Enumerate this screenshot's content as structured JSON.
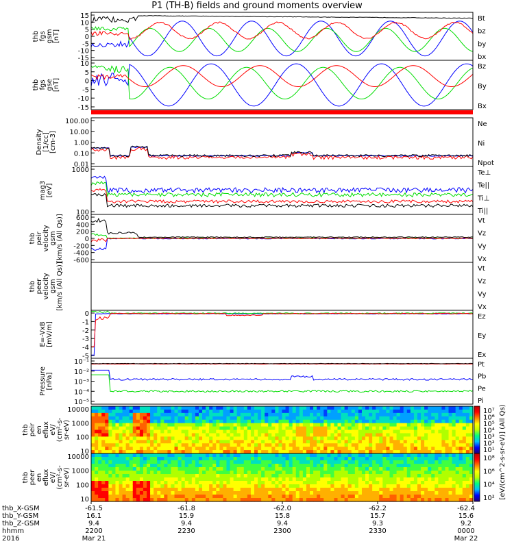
{
  "title": "P1 (TH-B) fields and ground moments overview",
  "colors": {
    "black": "#000000",
    "red": "#ff0000",
    "green": "#00dd00",
    "blue": "#0000ff"
  },
  "chart_data": [
    {
      "type": "line",
      "id": "fgs_gsm",
      "ylabel": [
        "thb",
        "fgs",
        "gsm",
        "[nT]"
      ],
      "yticks": [
        "15",
        "10",
        "5",
        "0",
        "-5",
        "-10",
        "-15"
      ],
      "ylim": [
        -17,
        16
      ],
      "series": [
        {
          "name": "Bt",
          "color": "black"
        },
        {
          "name": "bz",
          "color": "red"
        },
        {
          "name": "by",
          "color": "green"
        },
        {
          "name": "bx",
          "color": "blue"
        }
      ]
    },
    {
      "type": "line",
      "id": "fgs_gse",
      "ylabel": [
        "thb",
        "fgs",
        "gse",
        "[nT]"
      ],
      "yticks": [
        "10",
        "5",
        "0",
        "-5",
        "-10",
        "-15"
      ],
      "ylim": [
        -17,
        11
      ],
      "series": [
        {
          "name": "Bz",
          "color": "red"
        },
        {
          "name": "By",
          "color": "green"
        },
        {
          "name": "Bx",
          "color": "blue"
        }
      ]
    },
    {
      "type": "line",
      "id": "density",
      "ylabel": [
        "Density",
        "[1/cc]",
        "[cm-3]"
      ],
      "yticks": [
        "100.00",
        "10.00",
        "1.00",
        "0.10",
        "0.01"
      ],
      "ylim": [
        0.005,
        300
      ],
      "log": true,
      "series": [
        {
          "name": "Ne",
          "color": "red"
        },
        {
          "name": "Ni",
          "color": "black"
        },
        {
          "name": "Npot",
          "color": "blue"
        }
      ]
    },
    {
      "type": "line",
      "id": "temp",
      "ylabel": [
        "mag3",
        "[eV]"
      ],
      "yticks": [
        "1000",
        "100"
      ],
      "ylim": [
        30,
        3000
      ],
      "log": true,
      "series": [
        {
          "name": "Te⊥",
          "color": "red"
        },
        {
          "name": "Te||",
          "color": "black"
        },
        {
          "name": "Ti⊥",
          "color": "green"
        },
        {
          "name": "Ti||",
          "color": "green"
        }
      ]
    },
    {
      "type": "line",
      "id": "peir_vel",
      "ylabel": [
        "thb",
        "peir",
        "velocity",
        "gsm",
        "[km/s (All Qs)]"
      ],
      "yticks": [
        "600",
        "400",
        "200",
        "0",
        "-200",
        "-400",
        "-600"
      ],
      "ylim": [
        -600,
        600
      ],
      "series": [
        {
          "name": "Vt",
          "color": "black"
        },
        {
          "name": "Vz",
          "color": "red"
        },
        {
          "name": "Vy",
          "color": "green"
        },
        {
          "name": "Vx",
          "color": "blue"
        }
      ]
    },
    {
      "type": "line",
      "id": "peer_vel",
      "ylabel": [
        "thb",
        "peer",
        "velocity",
        "gsm",
        "[km/s (All Qs)]"
      ],
      "yticks": [],
      "ylim": [
        -1,
        1
      ],
      "series": [
        {
          "name": "Vt",
          "color": "black"
        },
        {
          "name": "Vz",
          "color": "red"
        },
        {
          "name": "Vy",
          "color": "green"
        },
        {
          "name": "Vx",
          "color": "blue"
        }
      ]
    },
    {
      "type": "line",
      "id": "efield",
      "ylabel": [
        "E=-VxB",
        "[mV/m]"
      ],
      "yticks": [
        "0",
        "-1",
        "-2",
        "-3",
        "-4",
        "-5"
      ],
      "ylim": [
        -5.4,
        0.4
      ],
      "series": [
        {
          "name": "Ez",
          "color": "red"
        },
        {
          "name": "Ey",
          "color": "green"
        },
        {
          "name": "Ex",
          "color": "blue"
        }
      ]
    },
    {
      "type": "line",
      "id": "pressure",
      "ylabel": [
        "Pressure",
        "[nPa]"
      ],
      "yticks": [
        "10⁻¹",
        "10⁻²",
        "10⁻³",
        "10⁻⁴",
        "10⁻⁵"
      ],
      "ylim": [
        -5.5,
        -0.5
      ],
      "log": true,
      "series": [
        {
          "name": "Pt",
          "color": "black"
        },
        {
          "name": "Pb",
          "color": "red"
        },
        {
          "name": "Pe",
          "color": "green"
        },
        {
          "name": "Pi",
          "color": "blue"
        }
      ]
    },
    {
      "type": "heatmap",
      "id": "peir_flux",
      "ylabel": [
        "thb",
        "peir",
        "en",
        "eflux",
        "eV/",
        "(cm²-s-",
        "sr-eV)"
      ],
      "yticks": [
        "10000",
        "1000",
        "100",
        "10"
      ],
      "colorbar": {
        "ticks": [
          "10⁷",
          "10⁶",
          "10⁵",
          "10⁴",
          "10³",
          "10²",
          "10¹"
        ],
        "label": "[eV/(cm^2-s-sr-eV)] (All Qs)"
      }
    },
    {
      "type": "heatmap",
      "id": "peer_flux",
      "ylabel": [
        "thb",
        "peer",
        "en",
        "eflux",
        "eV/",
        "(cm²-s-",
        "sr-eV)"
      ],
      "yticks": [
        "10000",
        "1000",
        "100",
        "10"
      ],
      "colorbar": {
        "ticks": [
          "10⁸",
          "10⁶",
          "10⁴",
          "10²"
        ],
        "label": "[eV/(cm^2-s-sr-eV)]"
      }
    }
  ],
  "xaxis": {
    "rows": [
      {
        "label": "thb_X-GSM",
        "values": [
          "-61.5",
          "-61.8",
          "-62.0",
          "-62.2",
          "-62.4"
        ]
      },
      {
        "label": "thb_Y-GSM",
        "values": [
          "16.1",
          "15.9",
          "15.8",
          "15.7",
          "15.6"
        ]
      },
      {
        "label": "thb_Z-GSM",
        "values": [
          "9.4",
          "9.4",
          "9.4",
          "9.3",
          "9.2"
        ]
      },
      {
        "label": "hhmm",
        "values": [
          "2200",
          "2230",
          "2300",
          "2330",
          "0000"
        ]
      },
      {
        "label": "2016",
        "values": [
          "Mar 21",
          "",
          "",
          "",
          "Mar 22"
        ]
      }
    ]
  }
}
